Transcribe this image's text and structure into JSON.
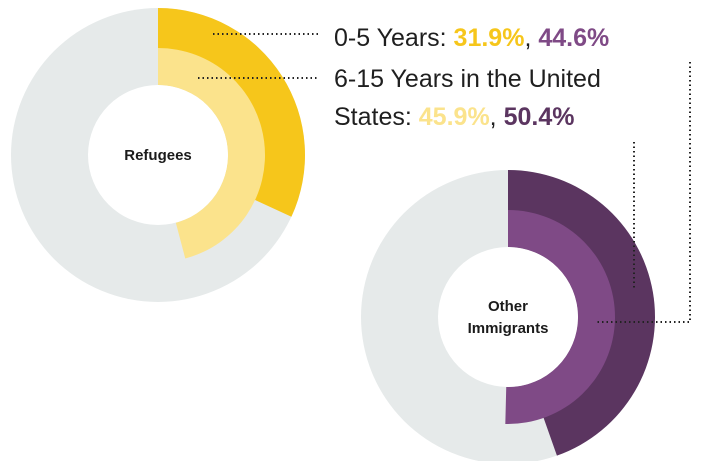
{
  "chart_data": {
    "type": "donut",
    "legend": [
      {
        "label": "0-5 Years:",
        "values": [
          "31.9%",
          "44.6%"
        ]
      },
      {
        "label_line1": "6-15 Years in the United",
        "label_line2": "States:",
        "values": [
          "45.9%",
          "50.4%"
        ]
      }
    ],
    "charts": [
      {
        "center_label": [
          "Refugees"
        ],
        "series": [
          {
            "ring": "outer",
            "value": 31.9,
            "color": "#f6c61b"
          },
          {
            "ring": "inner",
            "value": 45.9,
            "color": "#fbe38c"
          }
        ]
      },
      {
        "center_label": [
          "Other",
          "Immigrants"
        ],
        "series": [
          {
            "ring": "outer",
            "value": 44.6,
            "color": "#5b3560"
          },
          {
            "ring": "inner",
            "value": 50.4,
            "color": "#7f4a86"
          }
        ]
      }
    ],
    "background_color": "#e6eaea",
    "colors": {
      "yellow_dark": "#f6c61b",
      "yellow_light": "#fbe38c",
      "purple_dark": "#5b3560",
      "purple_light": "#7f4a86"
    }
  }
}
